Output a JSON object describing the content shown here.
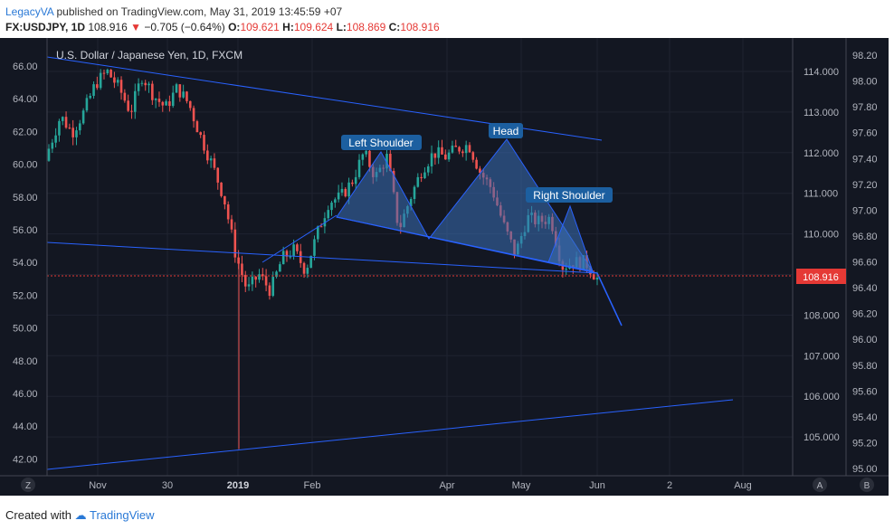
{
  "header": {
    "author": "LegacyVA",
    "published": "published on TradingView.com, May 31, 2019 13:45:59 +07",
    "symbol": "FX:USDJPY, 1D",
    "price": "108.916",
    "change": "−0.705 (−0.64%)",
    "o_label": "O:",
    "o_val": "109.621",
    "h_label": "H:",
    "h_val": "109.624",
    "l_label": "L:",
    "l_val": "108.869",
    "c_label": "C:",
    "c_val": "108.916"
  },
  "footer": {
    "created": "Created with",
    "brand": "TradingView"
  },
  "colors": {
    "bg": "#131722",
    "up": "#26a69a",
    "down": "#ef5350",
    "line": "#2962ff",
    "pattern": "#3b6fb6"
  },
  "chart_data": {
    "type": "candlestick",
    "title": "U.S. Dollar / Japanese Yen, 1D, FXCM",
    "x_ticks": [
      "Nov",
      "30",
      "2019",
      "Feb",
      "Apr",
      "May",
      "Jun",
      "2",
      "Aug"
    ],
    "right_price_axis": [
      "114.000",
      "113.000",
      "112.000",
      "111.000",
      "110.000",
      "109.000",
      "108.000",
      "107.000",
      "106.000",
      "105.000"
    ],
    "inner_right_axis": [
      "98.20",
      "98.00",
      "97.80",
      "97.60",
      "97.40",
      "97.20",
      "97.00",
      "96.80",
      "96.60",
      "96.40",
      "96.20",
      "96.00",
      "95.80",
      "95.60",
      "95.40",
      "95.20",
      "95.00"
    ],
    "left_axis": [
      "66.00",
      "64.00",
      "62.00",
      "60.00",
      "58.00",
      "56.00",
      "54.00",
      "52.00",
      "50.00",
      "48.00",
      "46.00",
      "44.00",
      "42.00"
    ],
    "last_price": "108.916",
    "annotations": [
      "Left Shoulder",
      "Head",
      "Right Shoulder"
    ],
    "corner_labels": {
      "z": "Z",
      "a": "A",
      "b": "B"
    },
    "ohlc_path": [
      [
        111.8,
        112.1
      ],
      [
        112.5,
        112.9
      ],
      [
        112.6,
        112.5
      ],
      [
        113.1,
        113.0
      ],
      [
        113.3,
        113.7
      ],
      [
        113.9,
        114.0
      ],
      [
        113.4,
        113.6
      ],
      [
        112.8,
        113.0
      ],
      [
        113.6,
        113.9
      ],
      [
        113.2,
        113.4
      ],
      [
        112.9,
        113.1
      ],
      [
        113.5,
        113.6
      ],
      [
        113.3,
        113.2
      ],
      [
        112.1,
        112.4
      ],
      [
        111.0,
        111.7
      ],
      [
        110.2,
        110.9
      ],
      [
        109.9,
        109.5
      ],
      [
        108.0,
        108.6
      ],
      [
        107.7,
        109.0
      ],
      [
        108.4,
        108.6
      ],
      [
        108.8,
        109.4
      ],
      [
        109.4,
        109.6
      ],
      [
        109.3,
        109.1
      ],
      [
        109.5,
        110.0
      ],
      [
        110.3,
        110.8
      ],
      [
        110.6,
        110.9
      ],
      [
        111.2,
        111.3
      ],
      [
        111.7,
        112.0
      ],
      [
        111.1,
        111.4
      ],
      [
        111.3,
        111.9
      ],
      [
        110.5,
        110.1
      ],
      [
        110.5,
        110.9
      ],
      [
        111.3,
        111.6
      ],
      [
        111.9,
        112.0
      ],
      [
        111.8,
        111.9
      ],
      [
        112.0,
        112.1
      ],
      [
        112.2,
        112.2
      ],
      [
        111.7,
        111.5
      ],
      [
        111.0,
        111.1
      ],
      [
        110.3,
        110.2
      ],
      [
        109.9,
        109.5
      ],
      [
        110.0,
        110.4
      ],
      [
        110.5,
        110.3
      ],
      [
        110.0,
        110.4
      ],
      [
        109.9,
        109.2
      ],
      [
        109.4,
        109.3
      ],
      [
        109.6,
        109.3
      ],
      [
        109.1,
        108.9
      ]
    ]
  }
}
